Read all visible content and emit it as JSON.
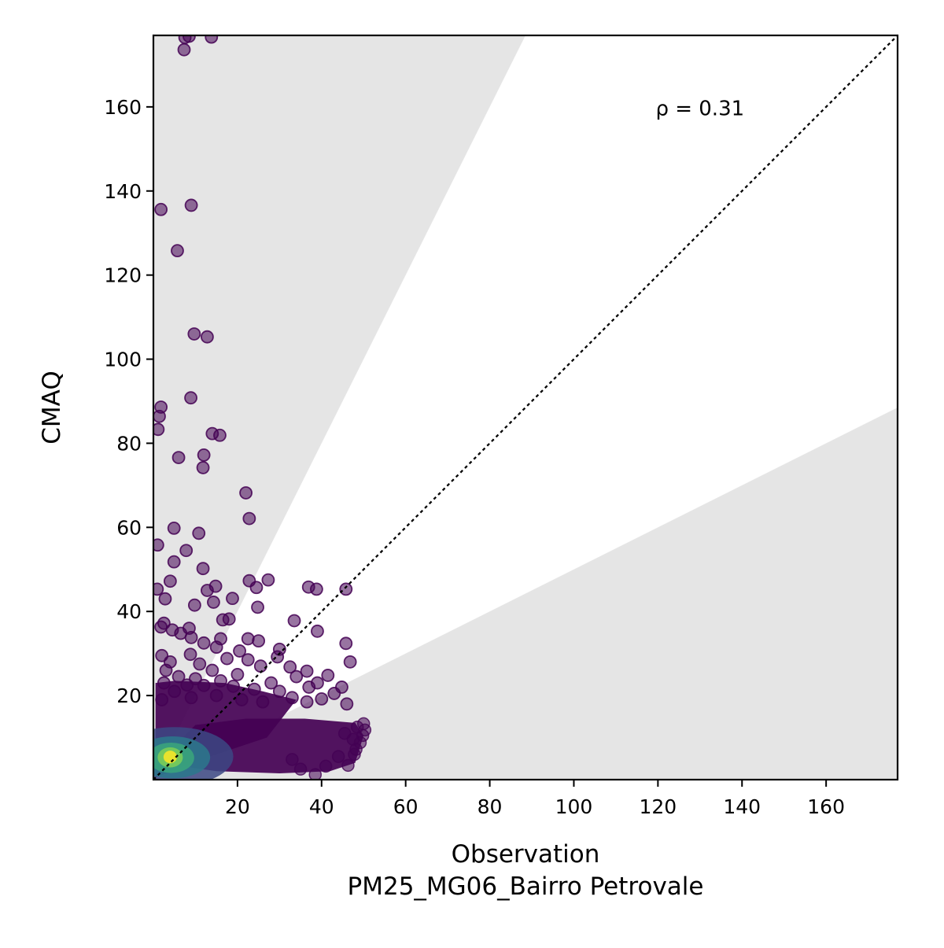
{
  "chart_data": {
    "type": "scatter",
    "title": "",
    "xlabel": "Observation",
    "xlabel_sub": "PM25_MG06_Bairro Petrovale",
    "ylabel": "CMAQ",
    "xlim": [
      0,
      177
    ],
    "ylim": [
      0,
      177
    ],
    "xticks": [
      20,
      40,
      60,
      80,
      100,
      120,
      140,
      160
    ],
    "yticks": [
      20,
      40,
      60,
      80,
      100,
      120,
      140,
      160
    ],
    "xtick_labels": [
      "20",
      "40",
      "60",
      "80",
      "100",
      "120",
      "140",
      "160"
    ],
    "ytick_labels": [
      "20",
      "40",
      "60",
      "80",
      "100",
      "120",
      "140",
      "160"
    ],
    "grid": false,
    "reference_line": {
      "slope": 1,
      "style": "dotted",
      "color": "#000000"
    },
    "shaded_regions": [
      {
        "description": "model > 2x observation",
        "slope_min": 2,
        "color": "#e5e5e5"
      },
      {
        "description": "model < 0.5x observation",
        "slope_max": 0.5,
        "color": "#e5e5e5"
      }
    ],
    "annotation": {
      "text": "ρ = 0.31",
      "x": 130,
      "y": 158
    },
    "colormap": "viridis",
    "density_note": "points colored by local point density",
    "points": [
      [
        7.5,
        176.5
      ],
      [
        8.5,
        176.8
      ],
      [
        13.8,
        176.6
      ],
      [
        7.3,
        173.6
      ],
      [
        9,
        136.6
      ],
      [
        1.8,
        135.6
      ],
      [
        5.7,
        125.8
      ],
      [
        9.7,
        106
      ],
      [
        12.8,
        105.3
      ],
      [
        8.9,
        90.8
      ],
      [
        1.8,
        88.6
      ],
      [
        1.4,
        86.4
      ],
      [
        1.1,
        83.3
      ],
      [
        14,
        82.3
      ],
      [
        15.8,
        81.9
      ],
      [
        12,
        77.2
      ],
      [
        6,
        76.6
      ],
      [
        11.8,
        74.2
      ],
      [
        22,
        68.2
      ],
      [
        22.8,
        62.1
      ],
      [
        4.9,
        59.8
      ],
      [
        10.8,
        58.6
      ],
      [
        1,
        55.8
      ],
      [
        7.8,
        54.5
      ],
      [
        4.9,
        51.8
      ],
      [
        11.8,
        50.2
      ],
      [
        22.8,
        47.3
      ],
      [
        27.3,
        47.5
      ],
      [
        4,
        47.2
      ],
      [
        14.8,
        46
      ],
      [
        12.8,
        45
      ],
      [
        24.5,
        45.7
      ],
      [
        0.9,
        45.3
      ],
      [
        36.9,
        45.8
      ],
      [
        38.8,
        45.3
      ],
      [
        45.8,
        45.3
      ],
      [
        2.8,
        43
      ],
      [
        14.3,
        42.2
      ],
      [
        18.8,
        43.1
      ],
      [
        9.8,
        41.5
      ],
      [
        24.8,
        41
      ],
      [
        33.5,
        37.8
      ],
      [
        16.5,
        38
      ],
      [
        18,
        38.2
      ],
      [
        2.5,
        37.2
      ],
      [
        1.8,
        36.3
      ],
      [
        4.5,
        35.6
      ],
      [
        8.5,
        36
      ],
      [
        39,
        35.3
      ],
      [
        6.5,
        34.8
      ],
      [
        9,
        33.8
      ],
      [
        16,
        33.5
      ],
      [
        22.5,
        33.5
      ],
      [
        25,
        33
      ],
      [
        45.8,
        32.4
      ],
      [
        12,
        32.5
      ],
      [
        15,
        31.5
      ],
      [
        30,
        31
      ],
      [
        20.5,
        30.6
      ],
      [
        29.5,
        29.2
      ],
      [
        2,
        29.5
      ],
      [
        8.8,
        29.8
      ],
      [
        17.5,
        28.8
      ],
      [
        22.5,
        28.5
      ],
      [
        46.8,
        28
      ],
      [
        4,
        28
      ],
      [
        11,
        27.5
      ],
      [
        25.5,
        27
      ],
      [
        32.5,
        26.8
      ],
      [
        3,
        26
      ],
      [
        14,
        26
      ],
      [
        20,
        25
      ],
      [
        36.5,
        25.8
      ],
      [
        41.5,
        24.8
      ],
      [
        6,
        24.5
      ],
      [
        10,
        24
      ],
      [
        16,
        23.5
      ],
      [
        28,
        23
      ],
      [
        34,
        24.5
      ],
      [
        39,
        23
      ],
      [
        44.8,
        22
      ],
      [
        2.5,
        23
      ],
      [
        8,
        22.5
      ],
      [
        12,
        22.4
      ],
      [
        19,
        22.2
      ],
      [
        24,
        21.5
      ],
      [
        30,
        21
      ],
      [
        37,
        22
      ],
      [
        43,
        20.5
      ],
      [
        5,
        21
      ],
      [
        15,
        20
      ],
      [
        33,
        19.5
      ],
      [
        40,
        19.2
      ],
      [
        26,
        18.5
      ],
      [
        46,
        18
      ],
      [
        2,
        19
      ],
      [
        9,
        19.5
      ],
      [
        21,
        19
      ],
      [
        36.5,
        18.5
      ]
    ],
    "dense_cloud": {
      "upper_fan": {
        "vertices": [
          [
            0.5,
            0.5
          ],
          [
            0.5,
            23
          ],
          [
            5,
            23.5
          ],
          [
            17,
            23
          ],
          [
            26,
            21
          ],
          [
            34,
            19
          ],
          [
            27,
            10
          ],
          [
            12,
            5
          ]
        ]
      },
      "lower_band": {
        "vertices": [
          [
            1,
            4
          ],
          [
            10,
            13
          ],
          [
            22,
            14.5
          ],
          [
            36,
            14.5
          ],
          [
            48,
            13.5
          ],
          [
            50,
            10.5
          ],
          [
            48,
            4
          ],
          [
            42,
            2
          ],
          [
            30,
            1.5
          ],
          [
            15,
            2
          ]
        ]
      },
      "edge_points": [
        [
          50,
          13.3
        ],
        [
          50.3,
          11.8
        ],
        [
          49.8,
          10.5
        ],
        [
          48.5,
          12.5
        ],
        [
          49.2,
          8.8
        ],
        [
          48.2,
          7.2
        ],
        [
          47.8,
          6
        ],
        [
          46.3,
          3.4
        ],
        [
          47.5,
          9.6
        ],
        [
          45.5,
          11
        ],
        [
          38.5,
          1.2
        ],
        [
          44,
          5.5
        ],
        [
          41,
          3.2
        ],
        [
          35,
          2.5
        ],
        [
          33,
          4.8
        ]
      ],
      "density_rings": [
        {
          "x": 5,
          "y": 5.5,
          "rx": 14,
          "ry": 7,
          "level": 0.22
        },
        {
          "x": 4.5,
          "y": 5.3,
          "rx": 9,
          "ry": 5,
          "level": 0.4
        },
        {
          "x": 4.2,
          "y": 5.2,
          "rx": 5.5,
          "ry": 3.6,
          "level": 0.6
        },
        {
          "x": 4,
          "y": 5.3,
          "rx": 3,
          "ry": 2.4,
          "level": 0.8
        },
        {
          "x": 4,
          "y": 5.4,
          "rx": 1.6,
          "ry": 1.5,
          "level": 1.0
        }
      ]
    }
  }
}
